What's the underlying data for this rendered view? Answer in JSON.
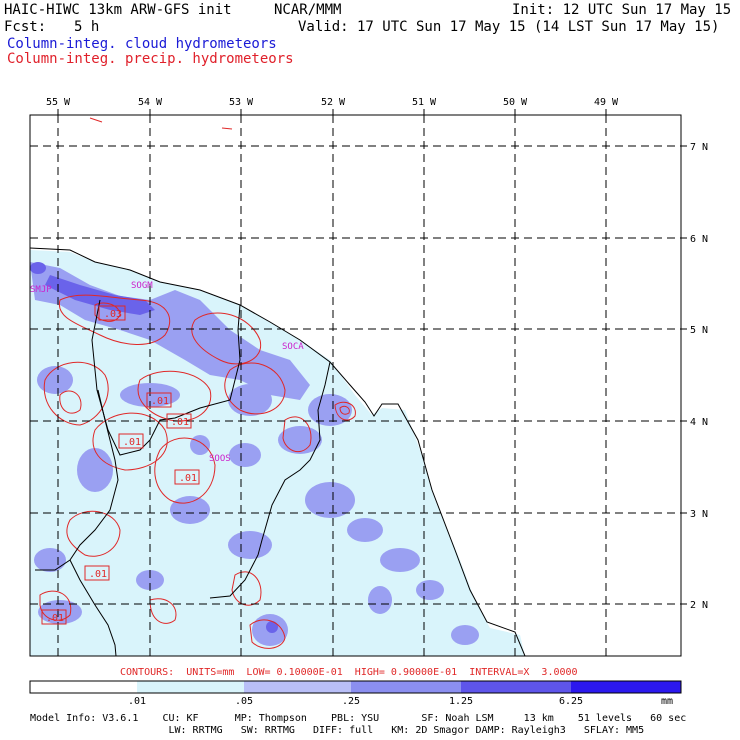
{
  "header": {
    "model_title": "HAIC-HIWC 13km ARW-GFS init",
    "org": "NCAR/MMM",
    "init": "Init: 12 UTC Sun 17 May 15",
    "fcst_label": "Fcst:",
    "fcst_value": "5 h",
    "valid": "Valid: 17 UTC Sun 17 May 15 (14 LST Sun 17 May 15)",
    "field1": "Column-integ. cloud hydrometeors",
    "field2": "Column-integ. precip. hydrometeors"
  },
  "colors": {
    "field1": "#1a1ad6",
    "field2": "#e0202a",
    "contour": "#e02828",
    "station": "#cc22cc",
    "coast": "#000000",
    "grid": "#000000",
    "shade_light": "#d9f4fb",
    "shade_mid": "#9aa0f2",
    "shade_dark": "#6a63ea",
    "shade_darkest": "#2b18ee"
  },
  "map": {
    "lon_labels": [
      "55 W",
      "54 W",
      "53 W",
      "52 W",
      "51 W",
      "50 W",
      "49 W"
    ],
    "lat_labels": [
      "7 N",
      "6 N",
      "5 N",
      "4 N",
      "3 N",
      "2 N"
    ],
    "stations": [
      "SMJP",
      "SOGM",
      "SOCA",
      "SOOS"
    ],
    "contour_labels": [
      ".03",
      ".01",
      ".01",
      ".01",
      ".01",
      ".01",
      ".01"
    ]
  },
  "contours_line": "CONTOURS:  UNITS=mm  LOW= 0.10000E-01  HIGH= 0.90000E-01  INTERVAL=X  3.0000",
  "colorbar": {
    "tick_labels": [
      ".01",
      ".05",
      ".25",
      "1.25",
      "6.25"
    ],
    "units": "mm",
    "colors": [
      "#ffffff",
      "#d9f4fb",
      "#b9bff7",
      "#8b8ff0",
      "#5e55ea",
      "#2b18ee"
    ]
  },
  "model_info": {
    "line1": "Model Info: V3.6.1    CU: KF      MP: Thompson    PBL: YSU       SF: Noah LSM     13 km    51 levels   60 sec",
    "line2": "                       LW: RRTMG   SW: RRTMG   DIFF: full   KM: 2D Smagor DAMP: Rayleigh3   SFLAY: MM5"
  }
}
